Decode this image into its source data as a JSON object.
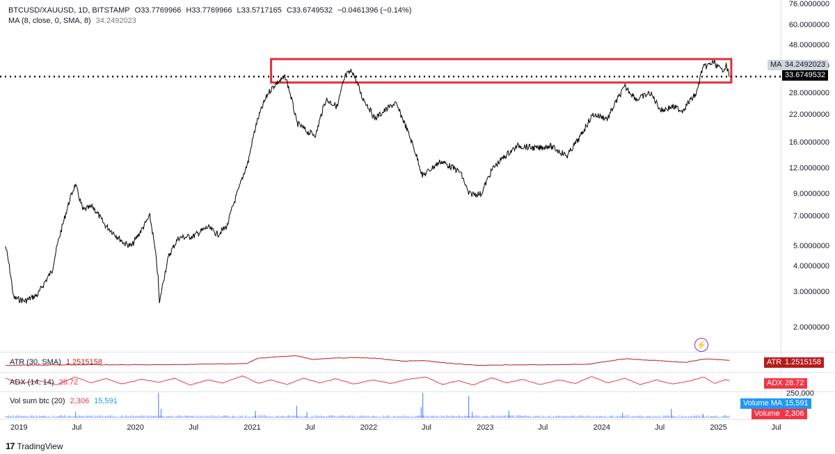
{
  "header": {
    "symbol": "BTCUSD/XAUUSD, 1D, BITSTAMP",
    "open": "O33.7769966",
    "high": "H33.7769966",
    "low": "L33.5717165",
    "close": "C33.6749532",
    "change": "−0.0461396 (−0.14%)",
    "ma_label": "MA (8, close, 0, SMA, 8)",
    "ma_value": "34.2492023"
  },
  "price_scale": {
    "ticks": [
      "76.0000000",
      "60.0000000",
      "48.0000000",
      "38.0000000",
      "28.0000000",
      "22.0000000",
      "16.0000000",
      "12.0000000",
      "9.0000000",
      "7.0000000",
      "5.0000000",
      "4.0000000",
      "3.0000000",
      "2.0000000"
    ],
    "ma_tag_label": "MA",
    "ma_tag_value": "34.2492023",
    "price_tag_value": "33.6749532"
  },
  "indicators": {
    "atr_label": "ATR (30, SMA)",
    "atr_value": "1.2515158",
    "atr_tag_label": "ATR",
    "atr_tag_value": "1.2515158",
    "adx_label": "ADX (14, 14)",
    "adx_value": "28.72",
    "adx_tag_label": "ADX",
    "adx_tag_value": "28.72",
    "vol_label": "Vol sum btc (20)",
    "vol_value": "2,306",
    "vol_ma_value": "15,591",
    "vol_scale_top": "250,000",
    "vol_ma_tag_label": "Volume MA",
    "vol_ma_tag_value": "15,591",
    "vol_tag_label": "Volume",
    "vol_tag_value": "2,306"
  },
  "time_axis": [
    "2019",
    "Jul",
    "2020",
    "Jul",
    "2021",
    "Jul",
    "2022",
    "Jul",
    "2023",
    "Jul",
    "2024",
    "Jul",
    "2025",
    "Jul"
  ],
  "footer": {
    "brand": "TradingView",
    "logo_text": "17"
  },
  "colors": {
    "price_line": "#000000",
    "highlight_box": "#e0313b",
    "atr": "#b71c1c",
    "adx": "#f23645",
    "volume": "#2962ff",
    "vol_tag": "#2196f3",
    "ma_tag_bg": "#d1d4dc"
  },
  "chart_data": {
    "type": "line",
    "scale": "log",
    "ylim": [
      1.6,
      76
    ],
    "x_range": [
      "2018-11-20",
      "2025-07-15"
    ],
    "series": [
      {
        "values_by_date": [
          [
            "2018-11-20",
            5.0
          ],
          [
            "2018-12-15",
            2.8
          ],
          [
            "2019-01-20",
            2.7
          ],
          [
            "2019-03-01",
            2.9
          ],
          [
            "2019-04-15",
            3.8
          ],
          [
            "2019-05-20",
            6.5
          ],
          [
            "2019-06-26",
            10.0
          ],
          [
            "2019-07-20",
            7.5
          ],
          [
            "2019-08-20",
            7.8
          ],
          [
            "2019-09-25",
            6.4
          ],
          [
            "2019-10-25",
            5.8
          ],
          [
            "2019-11-25",
            5.2
          ],
          [
            "2019-12-20",
            5.0
          ],
          [
            "2020-01-20",
            6.0
          ],
          [
            "2020-02-15",
            7.0
          ],
          [
            "2020-03-12",
            3.5
          ],
          [
            "2020-03-16",
            2.6
          ],
          [
            "2020-04-15",
            4.5
          ],
          [
            "2020-05-15",
            5.5
          ],
          [
            "2020-07-01",
            5.6
          ],
          [
            "2020-08-15",
            6.2
          ],
          [
            "2020-09-15",
            5.7
          ],
          [
            "2020-10-15",
            6.3
          ],
          [
            "2020-11-20",
            9.5
          ],
          [
            "2020-12-20",
            13.0
          ],
          [
            "2021-01-15",
            20.0
          ],
          [
            "2021-02-20",
            28.0
          ],
          [
            "2021-03-15",
            31.0
          ],
          [
            "2021-04-15",
            33.5
          ],
          [
            "2021-05-20",
            20.0
          ],
          [
            "2021-06-25",
            18.0
          ],
          [
            "2021-07-20",
            17.5
          ],
          [
            "2021-08-20",
            26.0
          ],
          [
            "2021-09-25",
            24.0
          ],
          [
            "2021-10-20",
            34.0
          ],
          [
            "2021-11-10",
            36.0
          ],
          [
            "2021-12-10",
            27.0
          ],
          [
            "2022-01-20",
            21.0
          ],
          [
            "2022-03-25",
            25.0
          ],
          [
            "2022-05-10",
            17.0
          ],
          [
            "2022-06-18",
            11.0
          ],
          [
            "2022-08-15",
            13.0
          ],
          [
            "2022-10-15",
            11.5
          ],
          [
            "2022-11-10",
            9.0
          ],
          [
            "2022-12-20",
            9.0
          ],
          [
            "2023-01-25",
            12.0
          ],
          [
            "2023-03-20",
            14.5
          ],
          [
            "2023-04-15",
            15.5
          ],
          [
            "2023-06-15",
            15.0
          ],
          [
            "2023-07-20",
            15.5
          ],
          [
            "2023-09-15",
            13.8
          ],
          [
            "2023-10-25",
            17.0
          ],
          [
            "2023-12-05",
            22.0
          ],
          [
            "2024-01-20",
            21.0
          ],
          [
            "2024-03-14",
            30.0
          ],
          [
            "2024-04-20",
            26.0
          ],
          [
            "2024-06-01",
            28.0
          ],
          [
            "2024-07-05",
            23.0
          ],
          [
            "2024-08-10",
            24.0
          ],
          [
            "2024-09-10",
            23.0
          ],
          [
            "2024-10-25",
            28.0
          ],
          [
            "2024-11-12",
            37.0
          ],
          [
            "2024-12-17",
            39.5
          ],
          [
            "2025-01-10",
            36.0
          ],
          [
            "2025-01-25",
            38.0
          ],
          [
            "2025-02-05",
            33.67
          ]
        ]
      },
      {
        "values_by_date": [
          [
            "2018-11-20",
            0.4
          ],
          [
            "2019-06-26",
            0.5
          ],
          [
            "2020-03-12",
            0.5
          ],
          [
            "2020-12-15",
            0.7
          ],
          [
            "2021-01-20",
            1.6
          ],
          [
            "2021-03-10",
            1.8
          ],
          [
            "2021-05-20",
            2.0
          ],
          [
            "2021-07-10",
            1.4
          ],
          [
            "2021-09-15",
            1.6
          ],
          [
            "2021-11-15",
            1.7
          ],
          [
            "2022-01-20",
            1.6
          ],
          [
            "2022-04-20",
            1.1
          ],
          [
            "2022-06-20",
            1.2
          ],
          [
            "2022-09-20",
            0.7
          ],
          [
            "2022-12-20",
            0.4
          ],
          [
            "2023-03-20",
            0.5
          ],
          [
            "2023-07-20",
            0.5
          ],
          [
            "2023-11-20",
            0.6
          ],
          [
            "2024-03-14",
            1.5
          ],
          [
            "2024-06-20",
            1.2
          ],
          [
            "2024-09-20",
            0.9
          ],
          [
            "2024-11-20",
            1.5
          ],
          [
            "2025-02-05",
            1.25
          ]
        ]
      },
      {
        "values_by_date": [
          [
            "2018-11-20",
            36
          ],
          [
            "2019-01-10",
            18
          ],
          [
            "2019-03-01",
            28
          ],
          [
            "2019-05-01",
            14
          ],
          [
            "2019-06-26",
            40
          ],
          [
            "2019-08-15",
            20
          ],
          [
            "2019-10-01",
            35
          ],
          [
            "2019-11-20",
            16
          ],
          [
            "2020-01-20",
            32
          ],
          [
            "2020-03-15",
            22
          ],
          [
            "2020-05-01",
            36
          ],
          [
            "2020-06-20",
            12
          ],
          [
            "2020-08-15",
            30
          ],
          [
            "2020-10-01",
            20
          ],
          [
            "2020-12-01",
            44
          ],
          [
            "2021-01-20",
            18
          ],
          [
            "2021-03-01",
            30
          ],
          [
            "2021-04-20",
            14
          ],
          [
            "2021-06-10",
            36
          ],
          [
            "2021-08-01",
            20
          ],
          [
            "2021-09-20",
            34
          ],
          [
            "2021-11-15",
            16
          ],
          [
            "2022-01-15",
            30
          ],
          [
            "2022-03-10",
            18
          ],
          [
            "2022-05-10",
            34
          ],
          [
            "2022-06-30",
            40
          ],
          [
            "2022-08-20",
            14
          ],
          [
            "2022-10-10",
            28
          ],
          [
            "2022-11-25",
            12
          ],
          [
            "2023-01-20",
            38
          ],
          [
            "2023-03-10",
            20
          ],
          [
            "2023-04-30",
            32
          ],
          [
            "2023-06-20",
            14
          ],
          [
            "2023-08-20",
            30
          ],
          [
            "2023-10-10",
            18
          ],
          [
            "2023-12-01",
            42
          ],
          [
            "2024-01-20",
            20
          ],
          [
            "2024-03-14",
            36
          ],
          [
            "2024-05-01",
            14
          ],
          [
            "2024-06-20",
            30
          ],
          [
            "2024-08-10",
            16
          ],
          [
            "2024-09-30",
            26
          ],
          [
            "2024-11-15",
            40
          ],
          [
            "2024-12-20",
            18
          ],
          [
            "2025-01-20",
            30
          ],
          [
            "2025-02-05",
            28.72
          ]
        ]
      }
    ],
    "volume_spikes": [
      [
        "2019-06-26",
        60000
      ],
      [
        "2020-03-12",
        250000
      ],
      [
        "2020-03-20",
        90000
      ],
      [
        "2021-01-10",
        70000
      ],
      [
        "2021-05-19",
        120000
      ],
      [
        "2021-06-20",
        60000
      ],
      [
        "2022-06-13",
        110000
      ],
      [
        "2022-06-18",
        250000
      ],
      [
        "2022-11-09",
        220000
      ],
      [
        "2022-11-20",
        60000
      ],
      [
        "2023-03-15",
        70000
      ],
      [
        "2024-03-05",
        50000
      ],
      [
        "2024-08-05",
        90000
      ],
      [
        "2024-11-12",
        40000
      ]
    ],
    "vol_ylim": [
      0,
      250000
    ],
    "highlight_range": {
      "from": "2021-03-01",
      "to": "2025-02-10",
      "low": 31.5,
      "high": 41.0
    },
    "horizontal_level": 33.6749532
  }
}
